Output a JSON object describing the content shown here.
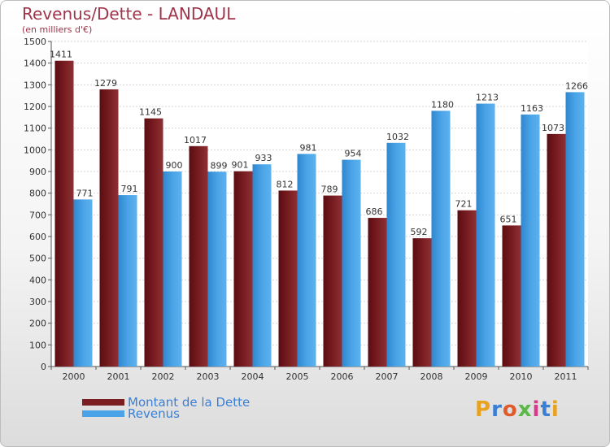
{
  "chart_data": {
    "type": "bar",
    "title": "Revenus/Dette - LANDAUL",
    "subtitle": "(en milliers d'€)",
    "categories": [
      "2000",
      "2001",
      "2002",
      "2003",
      "2004",
      "2005",
      "2006",
      "2007",
      "2008",
      "2009",
      "2010",
      "2011"
    ],
    "series": [
      {
        "name": "Montant de la Dette",
        "color": "#7a1e22",
        "values": [
          1411,
          1279,
          1145,
          1017,
          901,
          812,
          789,
          686,
          592,
          721,
          651,
          1073
        ]
      },
      {
        "name": "Revenus",
        "color": "#4aa3e6",
        "values": [
          771,
          791,
          900,
          899,
          933,
          981,
          954,
          1032,
          1180,
          1213,
          1163,
          1266
        ]
      }
    ],
    "ylim": [
      0,
      1500
    ],
    "yticks": [
      0,
      100,
      200,
      300,
      400,
      500,
      600,
      700,
      800,
      900,
      1000,
      1100,
      1200,
      1300,
      1400,
      1500
    ],
    "grid": true,
    "legend_position": "bottom-left"
  },
  "logo": {
    "text": "Proxiti"
  }
}
